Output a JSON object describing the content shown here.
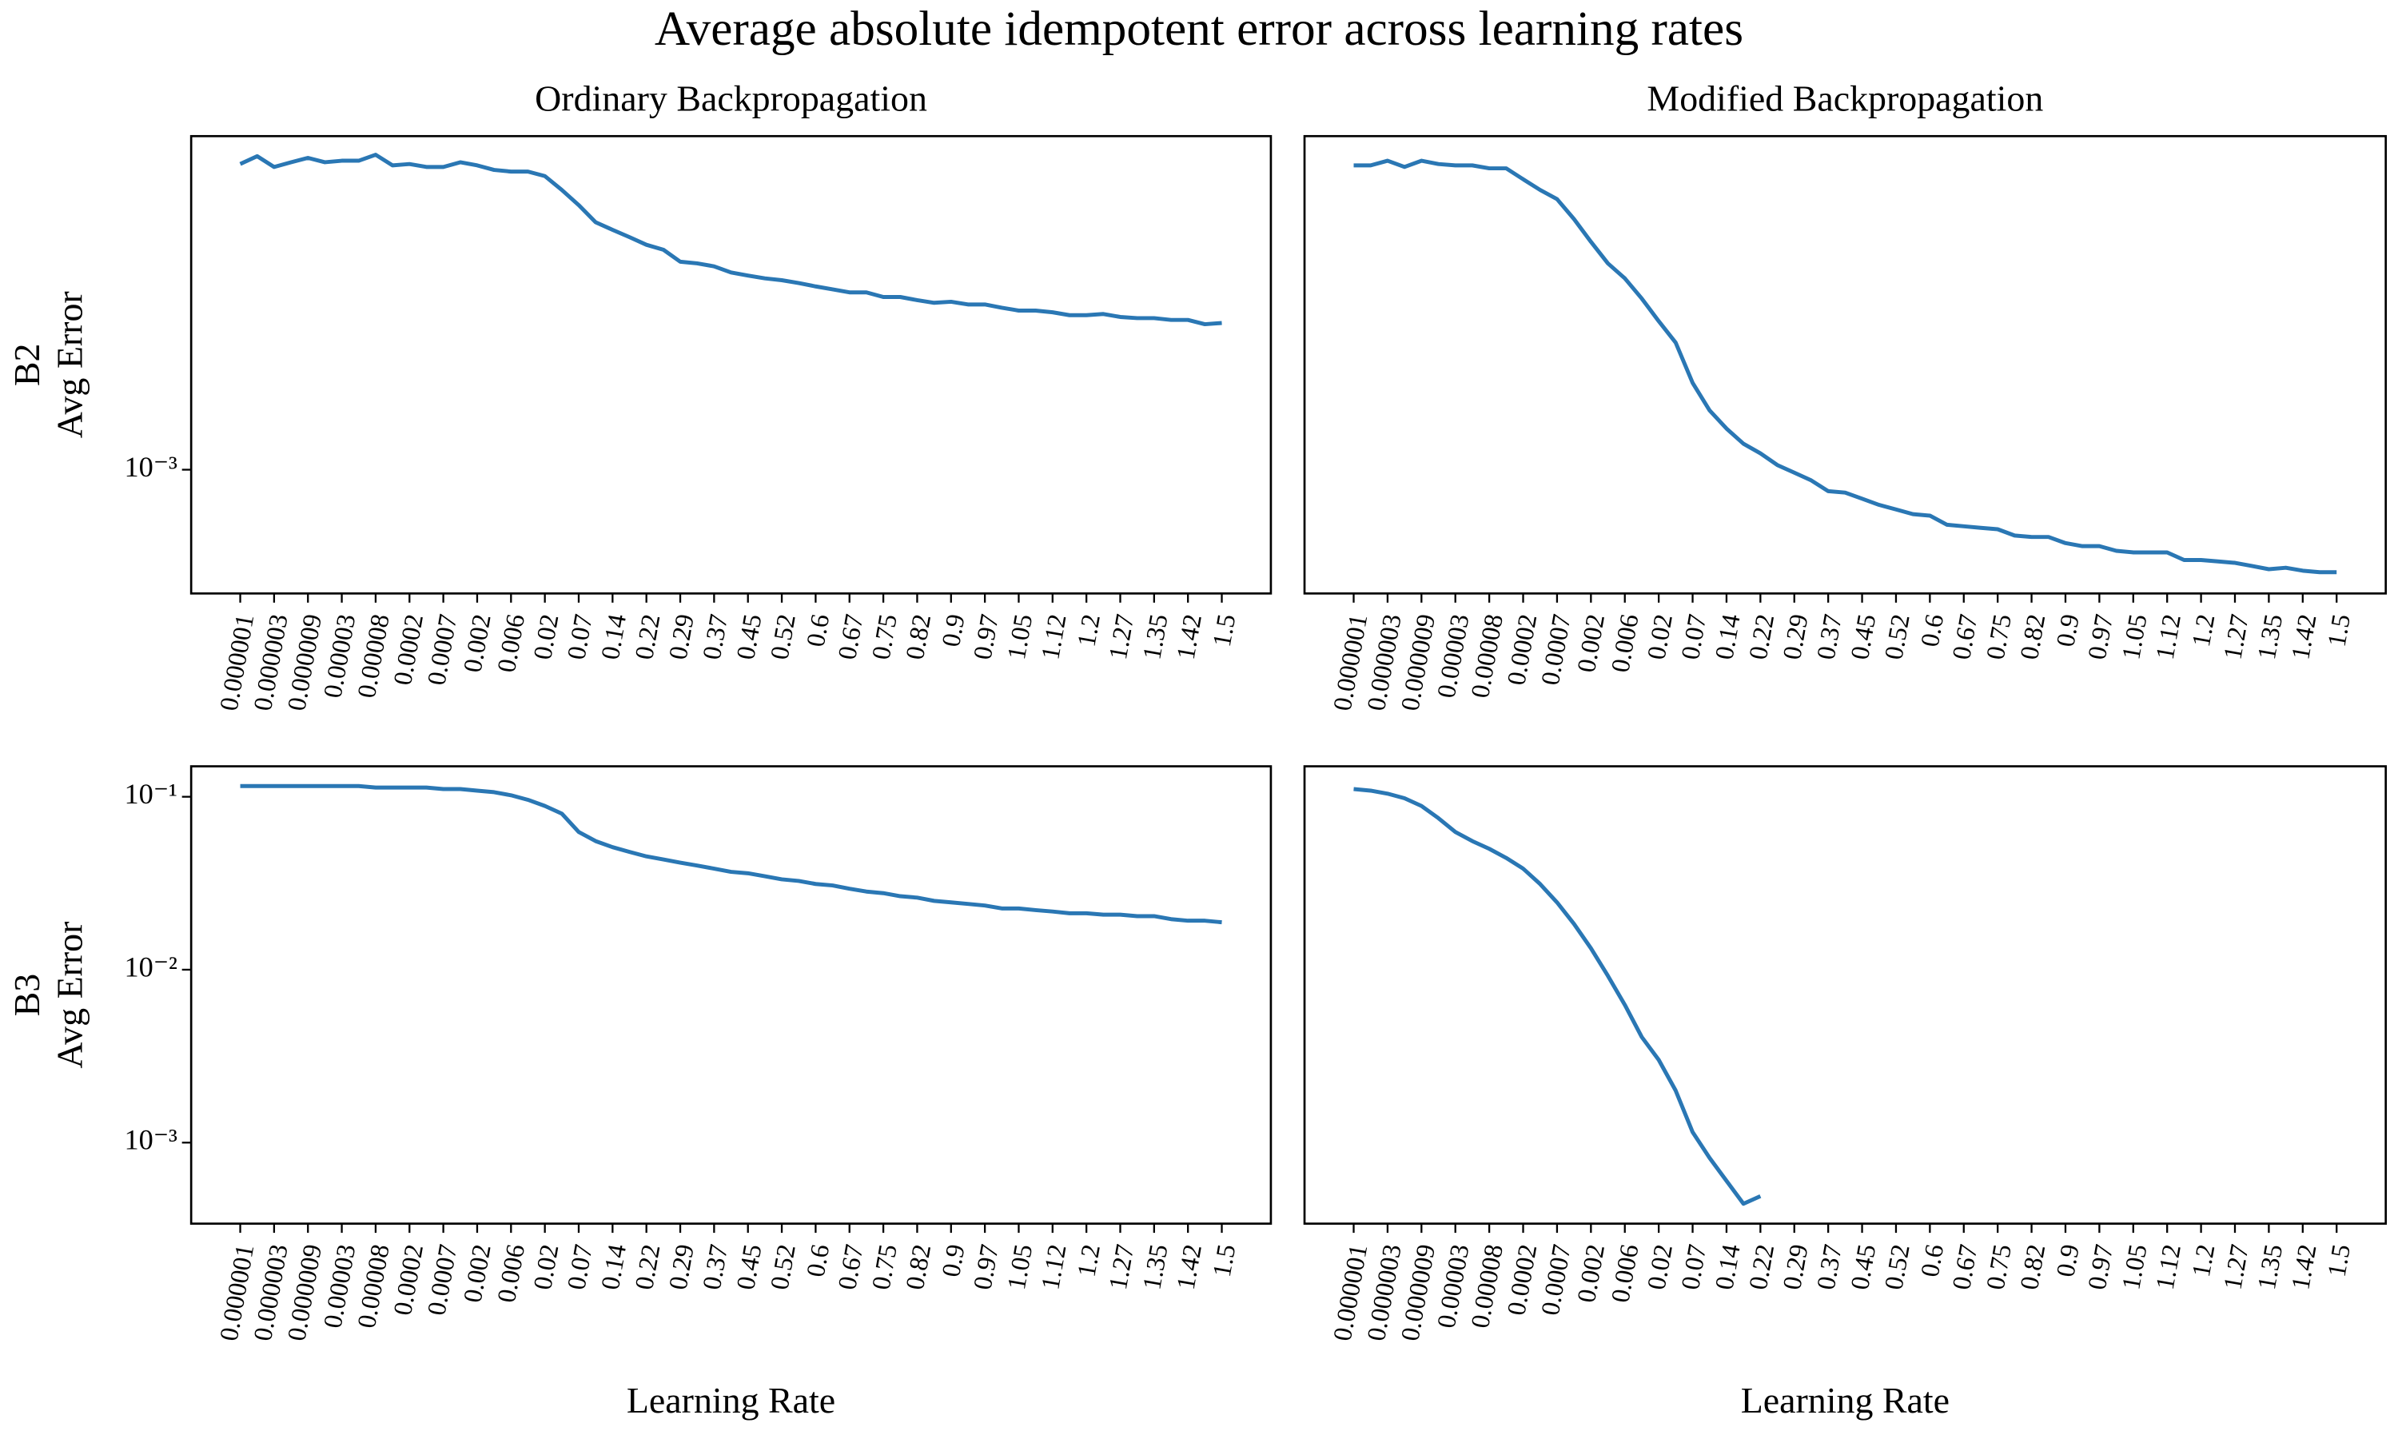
{
  "title": "Average absolute idempotent error across learning rates",
  "chart_data": [
    {
      "type": "line",
      "title": "Ordinary Backpropagation",
      "row_label": "B2",
      "ylabel": "Avg Error",
      "log_y": true,
      "color": "#2a77b4",
      "categories": [
        "0.000001",
        null,
        "0.000003",
        null,
        "0.000009",
        null,
        "0.00003",
        null,
        "0.00008",
        null,
        "0.0002",
        null,
        "0.0007",
        null,
        "0.002",
        null,
        "0.006",
        null,
        "0.02",
        null,
        "0.07",
        null,
        "0.14",
        null,
        "0.22",
        null,
        "0.29",
        null,
        "0.37",
        null,
        "0.45",
        null,
        "0.52",
        null,
        "0.6",
        null,
        "0.67",
        null,
        "0.75",
        null,
        "0.82",
        null,
        "0.9",
        null,
        "0.97",
        null,
        "1.05",
        null,
        "1.12",
        null,
        "1.2",
        null,
        "1.27",
        null,
        "1.35",
        null,
        "1.42",
        null,
        "1.5"
      ],
      "values": [
        0.00703,
        0.00739,
        0.0069,
        0.00711,
        0.00731,
        0.00711,
        0.00718,
        0.00718,
        0.00746,
        0.00697,
        0.00703,
        0.0069,
        0.0069,
        0.00711,
        0.00697,
        0.00677,
        0.0067,
        0.0067,
        0.00651,
        0.00596,
        0.00541,
        0.00485,
        0.00462,
        0.00441,
        0.0042,
        0.00407,
        0.00377,
        0.00373,
        0.00366,
        0.00352,
        0.00345,
        0.00339,
        0.00335,
        0.00329,
        0.00322,
        0.00316,
        0.0031,
        0.0031,
        0.00301,
        0.00301,
        0.00295,
        0.0029,
        0.00292,
        0.00287,
        0.00287,
        0.00281,
        0.00276,
        0.00276,
        0.00273,
        0.00268,
        0.00268,
        0.0027,
        0.00265,
        0.00263,
        0.00263,
        0.0026,
        0.0026,
        0.00253,
        0.00255
      ],
      "ylim": [
        0.000454,
        0.0084
      ],
      "yticks": [
        {
          "value": 0.001,
          "label": "10⁻³"
        }
      ]
    },
    {
      "type": "line",
      "title": "Modified Backpropagation",
      "log_y": true,
      "color": "#2a77b4",
      "categories": [
        "0.000001",
        null,
        "0.000003",
        null,
        "0.000009",
        null,
        "0.00003",
        null,
        "0.00008",
        null,
        "0.0002",
        null,
        "0.0007",
        null,
        "0.002",
        null,
        "0.006",
        null,
        "0.02",
        null,
        "0.07",
        null,
        "0.14",
        null,
        "0.22",
        null,
        "0.29",
        null,
        "0.37",
        null,
        "0.45",
        null,
        "0.52",
        null,
        "0.6",
        null,
        "0.67",
        null,
        "0.75",
        null,
        "0.82",
        null,
        "0.9",
        null,
        "0.97",
        null,
        "1.05",
        null,
        "1.12",
        null,
        "1.2",
        null,
        "1.27",
        null,
        "1.35",
        null,
        "1.42",
        null,
        "1.5"
      ],
      "values": [
        0.00697,
        0.00697,
        0.00718,
        0.0069,
        0.00718,
        0.00703,
        0.00697,
        0.00697,
        0.00684,
        0.00684,
        0.00638,
        0.00596,
        0.00562,
        0.00495,
        0.00428,
        0.00373,
        0.00339,
        0.00298,
        0.00258,
        0.00225,
        0.00174,
        0.00146,
        0.0013,
        0.00118,
        0.00111,
        0.00103,
        0.000981,
        0.000934,
        0.000872,
        0.000864,
        0.000831,
        0.000799,
        0.000776,
        0.000753,
        0.000746,
        0.000704,
        0.000697,
        0.00069,
        0.000684,
        0.000657,
        0.000651,
        0.000651,
        0.000626,
        0.000614,
        0.000614,
        0.000596,
        0.00059,
        0.00059,
        0.00059,
        0.000562,
        0.000562,
        0.000557,
        0.000552,
        0.000541,
        0.00053,
        0.000535,
        0.000525,
        0.00052,
        0.00052
      ],
      "ylim": [
        0.000454,
        0.0084
      ]
    },
    {
      "type": "line",
      "row_label": "B3",
      "ylabel": "Avg Error",
      "xlabel": "Learning Rate",
      "log_y": true,
      "color": "#2a77b4",
      "categories": [
        "0.000001",
        null,
        "0.000003",
        null,
        "0.000009",
        null,
        "0.00003",
        null,
        "0.00008",
        null,
        "0.0002",
        null,
        "0.0007",
        null,
        "0.002",
        null,
        "0.006",
        null,
        "0.02",
        null,
        "0.07",
        null,
        "0.14",
        null,
        "0.22",
        null,
        "0.29",
        null,
        "0.37",
        null,
        "0.45",
        null,
        "0.52",
        null,
        "0.6",
        null,
        "0.67",
        null,
        "0.75",
        null,
        "0.82",
        null,
        "0.9",
        null,
        "0.97",
        null,
        "1.05",
        null,
        "1.12",
        null,
        "1.2",
        null,
        "1.27",
        null,
        "1.35",
        null,
        "1.42",
        null,
        "1.5"
      ],
      "values": [
        0.1153,
        0.1153,
        0.1153,
        0.1153,
        0.1153,
        0.1153,
        0.1153,
        0.1153,
        0.113,
        0.113,
        0.113,
        0.113,
        0.1108,
        0.1108,
        0.1085,
        0.1063,
        0.102,
        0.096,
        0.0885,
        0.0799,
        0.0626,
        0.0554,
        0.0511,
        0.048,
        0.0452,
        0.0434,
        0.0416,
        0.04,
        0.0384,
        0.0368,
        0.0361,
        0.0347,
        0.0333,
        0.0326,
        0.0313,
        0.0307,
        0.0294,
        0.0283,
        0.0277,
        0.0266,
        0.0261,
        0.025,
        0.0245,
        0.024,
        0.0235,
        0.0226,
        0.0226,
        0.0221,
        0.0217,
        0.0212,
        0.0212,
        0.0208,
        0.0208,
        0.0204,
        0.0204,
        0.0196,
        0.0192,
        0.0192,
        0.0188
      ],
      "ylim": [
        0.00034,
        0.15
      ],
      "yticks": [
        {
          "value": 0.1,
          "label": "10⁻¹"
        },
        {
          "value": 0.01,
          "label": "10⁻²"
        },
        {
          "value": 0.001,
          "label": "10⁻³"
        }
      ]
    },
    {
      "type": "line",
      "xlabel": "Learning Rate",
      "log_y": true,
      "color": "#2a77b4",
      "categories": [
        "0.000001",
        null,
        "0.000003",
        null,
        "0.000009",
        null,
        "0.00003",
        null,
        "0.00008",
        null,
        "0.0002",
        null,
        "0.0007",
        null,
        "0.002",
        null,
        "0.006",
        null,
        "0.02",
        null,
        "0.07",
        null,
        "0.14",
        null,
        "0.22",
        null,
        "0.29",
        null,
        "0.37",
        null,
        "0.45",
        null,
        "0.52",
        null,
        "0.6",
        null,
        "0.67",
        null,
        "0.75",
        null,
        "0.82",
        null,
        "0.9",
        null,
        "0.97",
        null,
        "1.05",
        null,
        "1.12",
        null,
        "1.2",
        null,
        "1.27",
        null,
        "1.35",
        null,
        "1.42",
        null,
        "1.5"
      ],
      "values": [
        0.1108,
        0.1085,
        0.1042,
        0.098,
        0.0885,
        0.0752,
        0.0626,
        0.0554,
        0.05,
        0.0443,
        0.0384,
        0.0313,
        0.0245,
        0.0184,
        0.0133,
        0.00922,
        0.00626,
        0.00408,
        0.00301,
        0.002,
        0.00115,
        0.000816,
        0.000601,
        0.000443,
        0.00049,
        null,
        null,
        null,
        null,
        null,
        null,
        null,
        null,
        null,
        null,
        null,
        null,
        null,
        null,
        null,
        null,
        null,
        null,
        null,
        null,
        null,
        null,
        null,
        null,
        null,
        null,
        null,
        null,
        null,
        null,
        null,
        null,
        null,
        null
      ],
      "ylim": [
        0.00034,
        0.15
      ]
    }
  ]
}
